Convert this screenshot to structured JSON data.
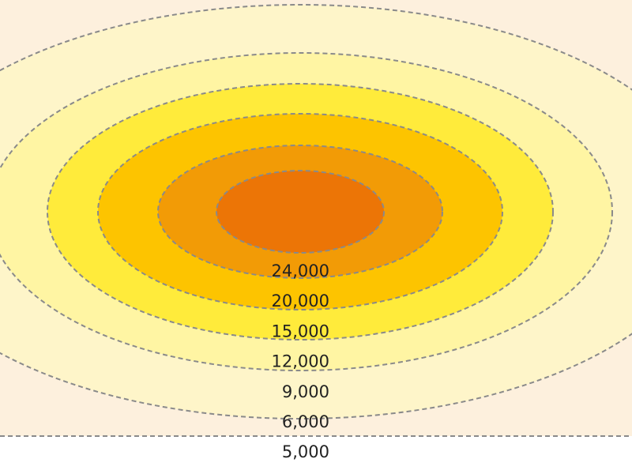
{
  "levels": [
    {
      "label": "24,000",
      "color": "#ec7506"
    },
    {
      "label": "20,000",
      "color": "#f29b06"
    },
    {
      "label": "15,000",
      "color": "#fdc400"
    },
    {
      "label": "12,000",
      "color": "#ffeb3b"
    },
    {
      "label": "9,000",
      "color": "#fff5a3"
    },
    {
      "label": "6,000",
      "color": "#fef5c9"
    },
    {
      "label": "5,000",
      "color": "#fdf0dd"
    }
  ]
}
